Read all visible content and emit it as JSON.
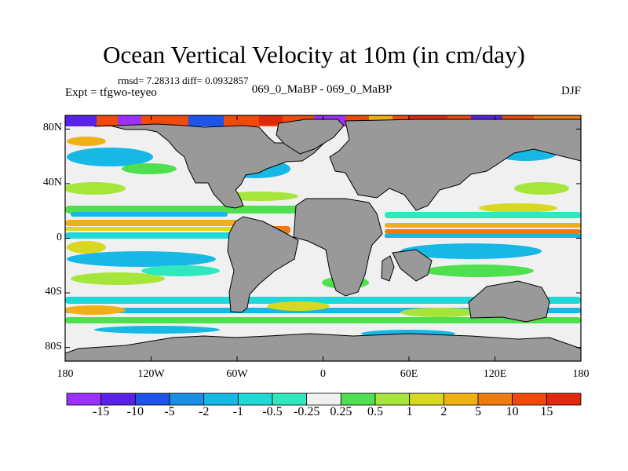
{
  "header": {
    "title": "Ocean Vertical Velocity at 10m (in cm/day)",
    "stats": "rmsd= 7.28313 diff= 0.0932857",
    "experiment": "Expt = tfgwo-teyeo",
    "cases": "069_0_MaBP - 069_0_MaBP",
    "season": "DJF"
  },
  "map": {
    "projection": "cylindrical equidistant",
    "lon_range": [
      -180,
      180
    ],
    "lat_range": [
      -90,
      90
    ],
    "land_color": "#999999",
    "lat_ticks": [
      {
        "value": 80,
        "label": "80N"
      },
      {
        "value": 40,
        "label": "40N"
      },
      {
        "value": 0,
        "label": "0"
      },
      {
        "value": -40,
        "label": "40S"
      },
      {
        "value": -80,
        "label": "80S"
      }
    ],
    "lon_ticks": [
      {
        "value": -180,
        "label": "180"
      },
      {
        "value": -120,
        "label": "120W"
      },
      {
        "value": -60,
        "label": "60W"
      },
      {
        "value": 0,
        "label": "0"
      },
      {
        "value": 60,
        "label": "60E"
      },
      {
        "value": 120,
        "label": "120E"
      },
      {
        "value": 180,
        "label": "180"
      }
    ]
  },
  "colorbar": {
    "labels": [
      "-15",
      "-10",
      "-5",
      "-2",
      "-1",
      "-0.5",
      "-0.25",
      "0.25",
      "0.5",
      "1",
      "2",
      "5",
      "10",
      "15"
    ],
    "colors": [
      "#9b30ff",
      "#5a22e6",
      "#1f54e8",
      "#1a8fe6",
      "#17b8e6",
      "#1fd8d8",
      "#30e8c0",
      "#f0f0f0",
      "#4ee04e",
      "#a6e63a",
      "#d8d820",
      "#f0b014",
      "#f07a10",
      "#f04a0a",
      "#e0280a"
    ]
  }
}
